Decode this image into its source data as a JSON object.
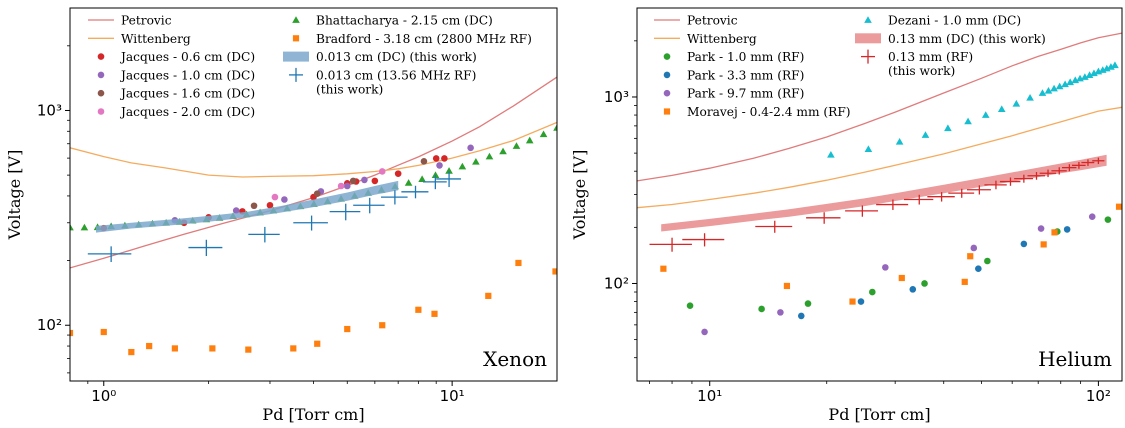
{
  "chart_data": [
    {
      "type": "scatter",
      "panel": "Xenon",
      "annotation": "Xenon",
      "xlabel": "Pd [Torr cm]",
      "ylabel": "Voltage [V]",
      "xscale": "log",
      "yscale": "log",
      "xlim": [
        0.8,
        20
      ],
      "ylim": [
        55,
        3000
      ],
      "xticks": [
        {
          "v": 1,
          "label": "10⁰"
        },
        {
          "v": 10,
          "label": "10¹"
        }
      ],
      "yticks": [
        {
          "v": 100,
          "label": "10²"
        },
        {
          "v": 1000,
          "label": "10³"
        }
      ],
      "legend_placement": "top-left",
      "legend_col1": [
        {
          "label": "Petrovic",
          "kind": "line",
          "color": "#e07b7b"
        },
        {
          "label": "Wittenberg",
          "kind": "line",
          "color": "#f5ab5e"
        },
        {
          "label": "Jacques - 0.6 cm (DC)",
          "kind": "circle",
          "color": "#d62728"
        },
        {
          "label": "Jacques - 1.0 cm (DC)",
          "kind": "circle",
          "color": "#9467bd"
        },
        {
          "label": "Jacques - 1.6 cm (DC)",
          "kind": "circle",
          "color": "#8c564b"
        },
        {
          "label": "Jacques - 2.0 cm (DC)",
          "kind": "circle",
          "color": "#e377c2"
        }
      ],
      "legend_col2": [
        {
          "label": "Bhattacharya - 2.15 cm (DC)",
          "kind": "triangle",
          "color": "#2ca02c"
        },
        {
          "label": "Bradford - 3.18 cm (2800 MHz RF)",
          "kind": "square",
          "color": "#ff7f0e"
        },
        {
          "label": "0.013 cm (DC) (this work)",
          "kind": "band",
          "color": "#7ba7cc"
        },
        {
          "label": "0.013 cm (13.56 MHz RF)",
          "label2": " (this work)",
          "kind": "cross",
          "color": "#1f77b4"
        }
      ],
      "series": [
        {
          "name": "Petrovic",
          "kind": "line",
          "color": "#e07b7b",
          "x": [
            0.8,
            1.0,
            1.3,
            1.7,
            2.2,
            3.0,
            4.0,
            5.0,
            6.0,
            7.0,
            8.0,
            10,
            12,
            15,
            20
          ],
          "y": [
            185,
            205,
            233,
            265,
            298,
            341,
            393,
            447,
            500,
            556,
            608,
            720,
            840,
            1050,
            1430
          ]
        },
        {
          "name": "Wittenberg",
          "kind": "line",
          "color": "#f5ab5e",
          "x": [
            0.8,
            1.0,
            1.2,
            1.5,
            2.0,
            2.5,
            3.0,
            4.0,
            5.0,
            6.0,
            7.0,
            8.0,
            10,
            12,
            15,
            20
          ],
          "y": [
            670,
            610,
            570,
            540,
            500,
            490,
            493,
            497,
            507,
            520,
            535,
            555,
            600,
            650,
            725,
            880
          ]
        },
        {
          "name": "Jacques - 0.6 cm (DC)",
          "kind": "circle",
          "color": "#d62728",
          "x": [
            1.0,
            1.7,
            2.0,
            2.5,
            3.0,
            4.0,
            5.0,
            5.3,
            6.0,
            7.0,
            9.0,
            9.5
          ],
          "y": [
            283,
            300,
            318,
            339,
            362,
            395,
            458,
            467,
            470,
            508,
            598,
            598
          ]
        },
        {
          "name": "Jacques - 1.0 cm (DC)",
          "kind": "circle",
          "color": "#9467bd",
          "x": [
            1.6,
            2.4,
            3.3,
            4.2,
            5.0,
            5.6,
            9.2,
            11.3
          ],
          "y": [
            308,
            342,
            385,
            420,
            445,
            475,
            555,
            670
          ]
        },
        {
          "name": "Jacques - 1.6 cm (DC)",
          "kind": "circle",
          "color": "#8c564b",
          "x": [
            2.7,
            4.1,
            5.2,
            8.3
          ],
          "y": [
            360,
            410,
            470,
            580
          ]
        },
        {
          "name": "Jacques - 2.0 cm (DC)",
          "kind": "circle",
          "color": "#e377c2",
          "x": [
            3.1,
            4.8,
            6.3
          ],
          "y": [
            395,
            445,
            520
          ]
        },
        {
          "name": "Bhattacharya - 2.15 cm (DC)",
          "kind": "triangle",
          "color": "#2ca02c",
          "x": [
            0.8,
            0.88,
            0.96,
            1.05,
            1.15,
            1.26,
            1.38,
            1.51,
            1.65,
            1.8,
            1.97,
            2.15,
            2.35,
            2.57,
            2.81,
            3.07,
            3.36,
            3.67,
            4.01,
            4.39,
            4.8,
            5.25,
            5.74,
            6.27,
            6.86,
            7.5,
            8.2,
            8.96,
            9.8,
            10.7,
            11.7,
            12.8,
            14.0,
            15.3,
            16.7,
            18.3,
            20.0
          ],
          "y": [
            285,
            285,
            286,
            289,
            291,
            294,
            297,
            300,
            303,
            307,
            311,
            316,
            322,
            328,
            335,
            342,
            350,
            358,
            367,
            377,
            388,
            400,
            413,
            427,
            443,
            460,
            479,
            500,
            523,
            548,
            577,
            610,
            645,
            683,
            725,
            775,
            830
          ]
        },
        {
          "name": "Bradford - 3.18 cm (2800 MHz RF)",
          "kind": "square",
          "color": "#ff7f0e",
          "x": [
            0.8,
            1.0,
            1.2,
            1.35,
            1.6,
            2.05,
            2.6,
            3.5,
            4.1,
            5.0,
            6.3,
            8.0,
            8.9,
            12.7,
            15.5,
            19.8
          ],
          "y": [
            92,
            93,
            75,
            80,
            78,
            78,
            77,
            78,
            82,
            96,
            100,
            118,
            113,
            137,
            195,
            178
          ]
        },
        {
          "name": "0.013 cm (DC) (this work)",
          "kind": "band",
          "color": "#7ba7cc",
          "x": [
            0.95,
            1.2,
            1.6,
            2.0,
            2.6,
            3.2,
            4.0,
            5.0,
            6.0,
            7.0
          ],
          "lo": [
            270,
            282,
            293,
            303,
            318,
            334,
            355,
            380,
            405,
            425
          ],
          "hi": [
            290,
            300,
            312,
            323,
            338,
            358,
            385,
            415,
            445,
            470
          ]
        },
        {
          "name": "0.013 cm (13.56 MHz RF)",
          "kind": "cross",
          "color": "#1f77b4",
          "x": [
            1.05,
            1.97,
            2.9,
            3.95,
            4.95,
            5.8,
            6.85,
            7.85,
            8.95,
            9.8
          ],
          "xerr_lo": [
            0.15,
            0.22,
            0.3,
            0.45,
            0.5,
            0.6,
            0.6,
            0.7,
            0.7,
            0.8
          ],
          "xerr_hi": [
            0.15,
            0.22,
            0.3,
            0.45,
            0.5,
            0.6,
            0.6,
            0.7,
            0.7,
            0.8
          ],
          "y": [
            215,
            230,
            265,
            300,
            338,
            362,
            395,
            418,
            465,
            480
          ],
          "yerr": [
            18,
            20,
            22,
            24,
            30,
            30,
            30,
            28,
            35,
            40
          ]
        }
      ]
    },
    {
      "type": "scatter",
      "panel": "Helium",
      "annotation": "Helium",
      "xlabel": "Pd [Torr cm]",
      "ylabel": "Voltage [V]",
      "xscale": "log",
      "yscale": "log",
      "xlim": [
        6.5,
        115
      ],
      "ylim": [
        30,
        3000
      ],
      "xticks": [
        {
          "v": 10,
          "label": "10¹"
        },
        {
          "v": 100,
          "label": "10²"
        }
      ],
      "yticks": [
        {
          "v": 100,
          "label": "10²"
        },
        {
          "v": 1000,
          "label": "10³"
        }
      ],
      "legend_placement": "top-left",
      "legend_col1": [
        {
          "label": "Petrovic",
          "kind": "line",
          "color": "#e07b7b"
        },
        {
          "label": "Wittenberg",
          "kind": "line",
          "color": "#f5ab5e"
        },
        {
          "label": "Park - 1.0 mm (RF)",
          "kind": "circle",
          "color": "#2ca02c"
        },
        {
          "label": "Park - 3.3 mm (RF)",
          "kind": "circle",
          "color": "#1f77b4"
        },
        {
          "label": "Park - 9.7 mm (RF)",
          "kind": "circle",
          "color": "#9467bd"
        },
        {
          "label": "Moravej - 0.4-2.4 mm (RF)",
          "kind": "square",
          "color": "#ff7f0e"
        }
      ],
      "legend_col2": [
        {
          "label": "Dezani - 1.0 mm (DC)",
          "kind": "triangle",
          "color": "#17becf"
        },
        {
          "label": "0.13 mm (DC) (this work)",
          "kind": "band",
          "color": "#e88a8a"
        },
        {
          "label": "0.13 mm (RF)",
          "label2": " (this work)",
          "kind": "cross",
          "color": "#d62728"
        }
      ],
      "series": [
        {
          "name": "Petrovic",
          "kind": "line",
          "color": "#e07b7b",
          "x": [
            6.5,
            8,
            10,
            13,
            16,
            20,
            25,
            30,
            40,
            50,
            60,
            70,
            80,
            90,
            100,
            115
          ],
          "y": [
            355,
            380,
            415,
            470,
            530,
            610,
            720,
            830,
            1050,
            1260,
            1470,
            1650,
            1800,
            1950,
            2080,
            2200
          ]
        },
        {
          "name": "Wittenberg",
          "kind": "line",
          "color": "#f5ab5e",
          "x": [
            6.5,
            8,
            10,
            13,
            16,
            20,
            25,
            30,
            40,
            50,
            60,
            70,
            80,
            90,
            100,
            115
          ],
          "y": [
            255,
            265,
            282,
            305,
            328,
            358,
            395,
            430,
            495,
            560,
            620,
            680,
            735,
            790,
            840,
            880
          ]
        },
        {
          "name": "Park - 1.0 mm (RF)",
          "kind": "circle",
          "color": "#2ca02c",
          "x": [
            8.9,
            13.6,
            17.9,
            26.2,
            35.7,
            51.8,
            78.4,
            105.8
          ],
          "y": [
            76,
            73,
            78,
            90,
            100,
            132,
            190,
            220
          ]
        },
        {
          "name": "Park - 3.3 mm (RF)",
          "kind": "circle",
          "color": "#1f77b4",
          "x": [
            17.2,
            24.5,
            33.3,
            49.1,
            64.3,
            83.1
          ],
          "y": [
            67,
            80,
            93,
            120,
            163,
            195
          ]
        },
        {
          "name": "Park - 9.7 mm (RF)",
          "kind": "circle",
          "color": "#9467bd",
          "x": [
            9.7,
            15.2,
            28.3,
            47.8,
            71.2,
            96.4
          ],
          "y": [
            55,
            70,
            122,
            155,
            197,
            228
          ]
        },
        {
          "name": "Moravej - 0.4-2.4 mm (RF)",
          "kind": "square",
          "color": "#ff7f0e",
          "x": [
            7.6,
            15.8,
            23.3,
            31.2,
            45.3,
            46.8,
            72.3,
            77.1,
            113.0
          ],
          "y": [
            120,
            97,
            80,
            107,
            102,
            140,
            162,
            188,
            258
          ]
        },
        {
          "name": "Dezani - 1.0 mm (DC)",
          "kind": "triangle",
          "color": "#17becf",
          "x": [
            20.5,
            25.6,
            30.8,
            35.9,
            41.0,
            46.2,
            51.3,
            56.4,
            61.5,
            66.7,
            71.8,
            74.4,
            76.9,
            79.5,
            82.1,
            84.6,
            87.2,
            89.7,
            92.3,
            94.9,
            97.4,
            100.0,
            102.6,
            105.1,
            107.7,
            110.3
          ],
          "y": [
            490,
            525,
            575,
            625,
            680,
            740,
            800,
            860,
            920,
            990,
            1050,
            1080,
            1110,
            1140,
            1170,
            1200,
            1230,
            1255,
            1280,
            1310,
            1340,
            1370,
            1395,
            1420,
            1450,
            1480
          ]
        },
        {
          "name": "0.13 mm (DC) (this work)",
          "kind": "band",
          "color": "#e88a8a",
          "x": [
            7.5,
            10,
            13,
            16,
            20,
            25,
            30,
            40,
            50,
            60,
            70,
            80,
            90,
            105
          ],
          "lo": [
            190,
            203,
            217,
            228,
            243,
            260,
            277,
            305,
            330,
            352,
            372,
            390,
            405,
            428
          ],
          "hi": [
            208,
            222,
            237,
            250,
            267,
            286,
            305,
            338,
            368,
            394,
            418,
            440,
            460,
            490
          ]
        },
        {
          "name": "0.13 mm (RF)",
          "kind": "cross",
          "color": "#d62728",
          "x": [
            8.0,
            9.7,
            14.7,
            19.7,
            24.7,
            29.6,
            34.6,
            39.5,
            44.5,
            49.4,
            54.5,
            59.4,
            64.3,
            69.3,
            74.2,
            79.3,
            84.2,
            89.1,
            94.0,
            100.0
          ],
          "xerr": [
            1.0,
            1.2,
            1.6,
            2.0,
            2.4,
            2.8,
            3.0,
            3.2,
            3.4,
            3.5,
            3.6,
            3.6,
            3.6,
            3.6,
            3.6,
            3.6,
            3.6,
            3.6,
            3.6,
            3.6
          ],
          "y": [
            162,
            172,
            202,
            225,
            245,
            265,
            282,
            292,
            305,
            318,
            338,
            352,
            365,
            378,
            390,
            402,
            418,
            430,
            445,
            455
          ],
          "yerr": [
            14,
            14,
            15,
            16,
            17,
            17,
            17,
            17,
            17,
            18,
            18,
            18,
            18,
            18,
            18,
            18,
            18,
            18,
            18,
            18
          ]
        }
      ]
    }
  ]
}
